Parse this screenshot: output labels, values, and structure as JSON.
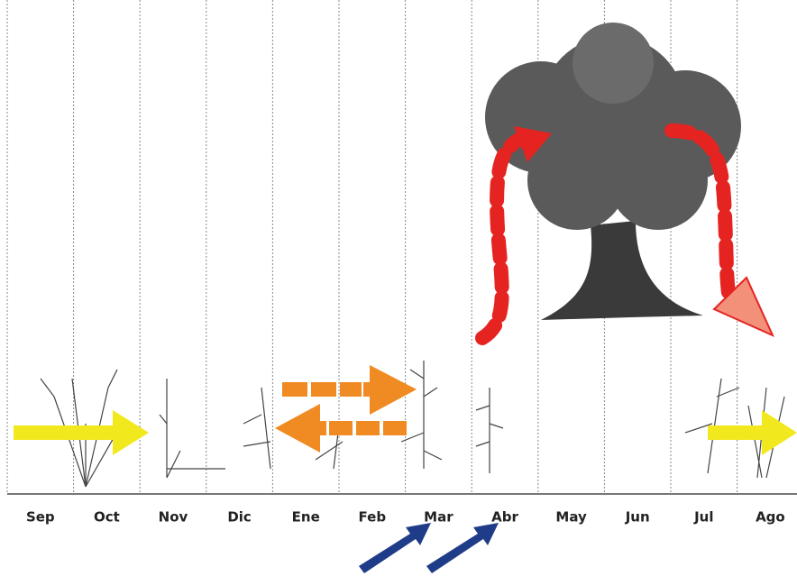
{
  "months": [
    "Sep",
    "Oct",
    "Nov",
    "Dic",
    "Ene",
    "Feb",
    "Mar",
    "Abr",
    "May",
    "Jun",
    "Jul",
    "Ago"
  ]
}
